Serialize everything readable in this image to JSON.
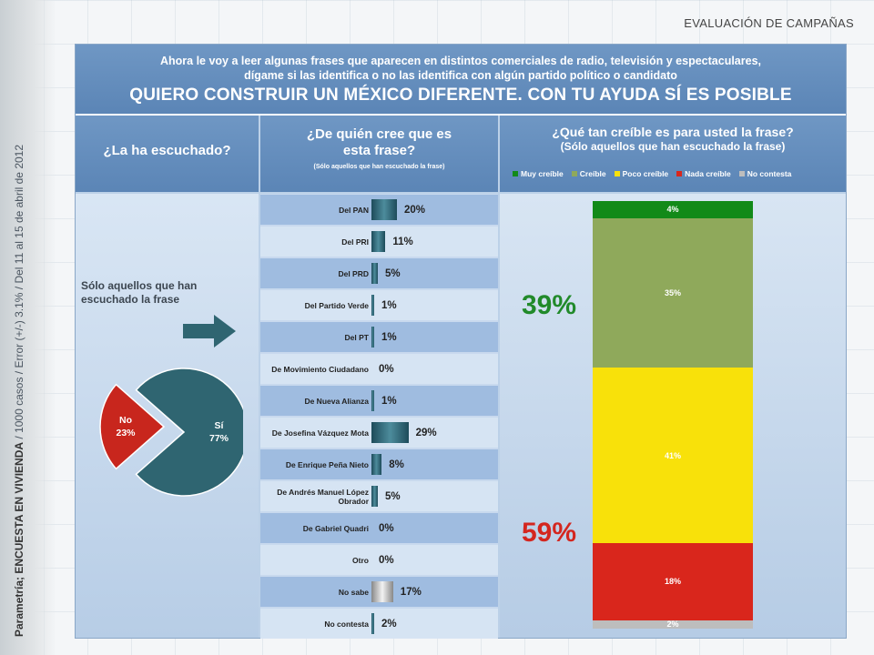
{
  "side_caption_main": "Parametría; ENCUESTA EN VIVIENDA",
  "side_caption_detail": " / 1000 casos / Error (+/-) 3.1% / Del 11 al 15 de abril de 2012",
  "top_label": "EVALUACIÓN DE CAMPAÑAS",
  "header": {
    "question_line1": "Ahora le voy a leer algunas frases que aparecen en distintos comerciales de radio, televisión y espectaculares,",
    "question_line2": "dígame si las identifica o no las identifica con algún partido político o candidato",
    "slogan": "QUIERO CONSTRUIR UN MÉXICO DIFERENTE. CON TU AYUDA SÍ ES POSIBLE"
  },
  "columns": {
    "heard_title": "¿La ha escuchado?",
    "whose_title_1": "¿De quién cree que es",
    "whose_title_2": "esta frase?",
    "whose_sub": "(Sólo aquellos que han escuchado la frase)",
    "credible_title": "¿Qué tan creíble es para usted la frase?",
    "credible_sub": "(Sólo aquellos que han escuchado la frase)"
  },
  "note": "Sólo aquellos que han escuchado la frase",
  "colors": {
    "muy_creible": "#128a18",
    "creible": "#8fa95b",
    "poco_creible": "#f8e10a",
    "nada_creible": "#d9261c",
    "no_contesta": "#bdbdbd",
    "pie_si": "#2f6571",
    "pie_no": "#c8261d",
    "big_green": "#218a2a",
    "big_red": "#d4261f"
  },
  "big_positive": "39%",
  "big_negative": "59%",
  "chart_data": [
    {
      "type": "pie",
      "slices": [
        {
          "name": "Sí",
          "value": 77,
          "label": "77%"
        },
        {
          "name": "No",
          "value": 23,
          "label": "23%"
        }
      ]
    },
    {
      "type": "bar",
      "orientation": "horizontal",
      "categories": [
        "Del PAN",
        "Del PRI",
        "Del PRD",
        "Del Partido Verde",
        "Del PT",
        "De Movimiento Ciudadano",
        "De Nueva Alianza",
        "De Josefina Vázquez Mota",
        "De Enrique Peña Nieto",
        "De Andrés Manuel López Obrador",
        "De Gabriel Quadri",
        "Otro",
        "No sabe",
        "No contesta"
      ],
      "values": [
        20,
        11,
        5,
        1,
        1,
        0,
        1,
        29,
        8,
        5,
        0,
        0,
        17,
        2
      ],
      "labels": [
        "20%",
        "11%",
        "5%",
        "1%",
        "1%",
        "0%",
        "1%",
        "29%",
        "8%",
        "5%",
        "0%",
        "0%",
        "17%",
        "2%"
      ]
    },
    {
      "type": "bar",
      "stacked": true,
      "categories": [
        "Muy creíble",
        "Creíble",
        "Poco creíble",
        "Nada creíble",
        "No contesta"
      ],
      "values": [
        4,
        35,
        41,
        18,
        2
      ],
      "labels": [
        "4%",
        "35%",
        "41%",
        "18%",
        "2%"
      ]
    }
  ]
}
